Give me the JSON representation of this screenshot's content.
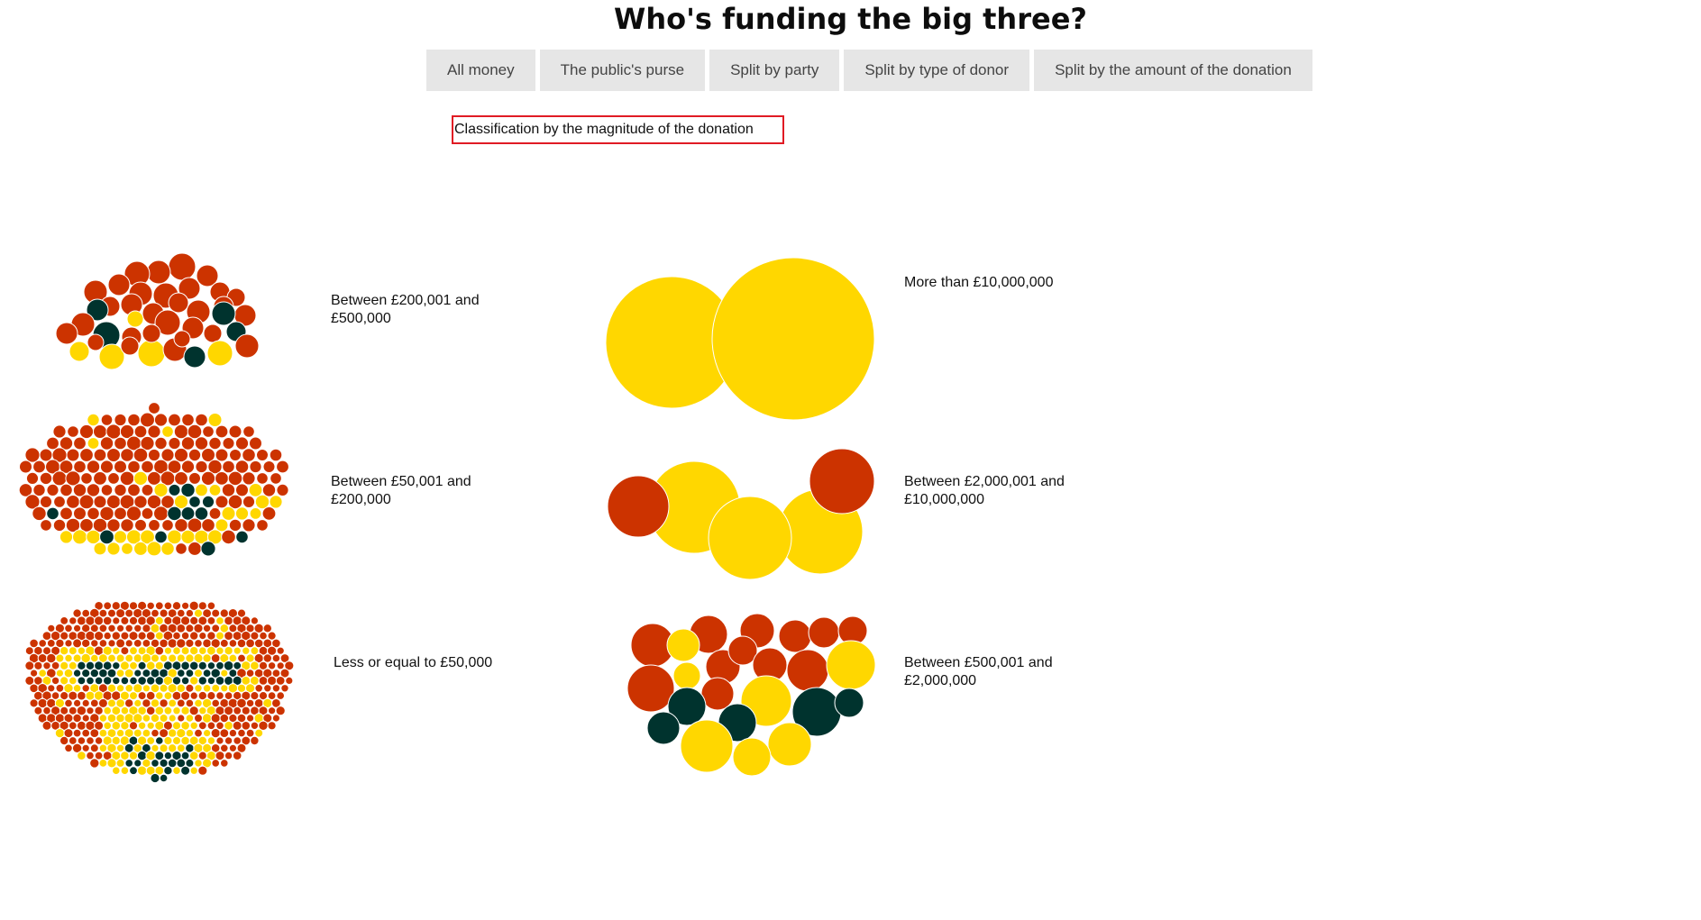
{
  "page": {
    "title": "Who's funding the big three?"
  },
  "tabs": [
    {
      "label": "All money"
    },
    {
      "label": "The public's purse"
    },
    {
      "label": "Split by party"
    },
    {
      "label": "Split by type of donor"
    },
    {
      "label": "Split by the amount of the donation"
    }
  ],
  "caption": "Classification by the magnitude of the donation",
  "colors": {
    "red": "#cc3300",
    "dark": "#00332e",
    "yellow": "#ffd700",
    "tab_bg": "#e6e6e6",
    "highlight_border": "#e01b24"
  },
  "groups": [
    {
      "id": "g200k-500k",
      "label_line1": "Between £200,001 and",
      "label_line2": "£500,000"
    },
    {
      "id": "g50k-200k",
      "label_line1": "Between £50,001 and",
      "label_line2": "£200,000"
    },
    {
      "id": "g-le-50k",
      "label_line1": "Less or equal to £50,000",
      "label_line2": ""
    },
    {
      "id": "g-gt-10m",
      "label_line1": "More than £10,000,000",
      "label_line2": ""
    },
    {
      "id": "g2m-10m",
      "label_line1": "Between £2,000,001 and",
      "label_line2": "£10,000,000"
    },
    {
      "id": "g500k-2m",
      "label_line1": "Between £500,001 and",
      "label_line2": "£2,000,000"
    }
  ]
}
